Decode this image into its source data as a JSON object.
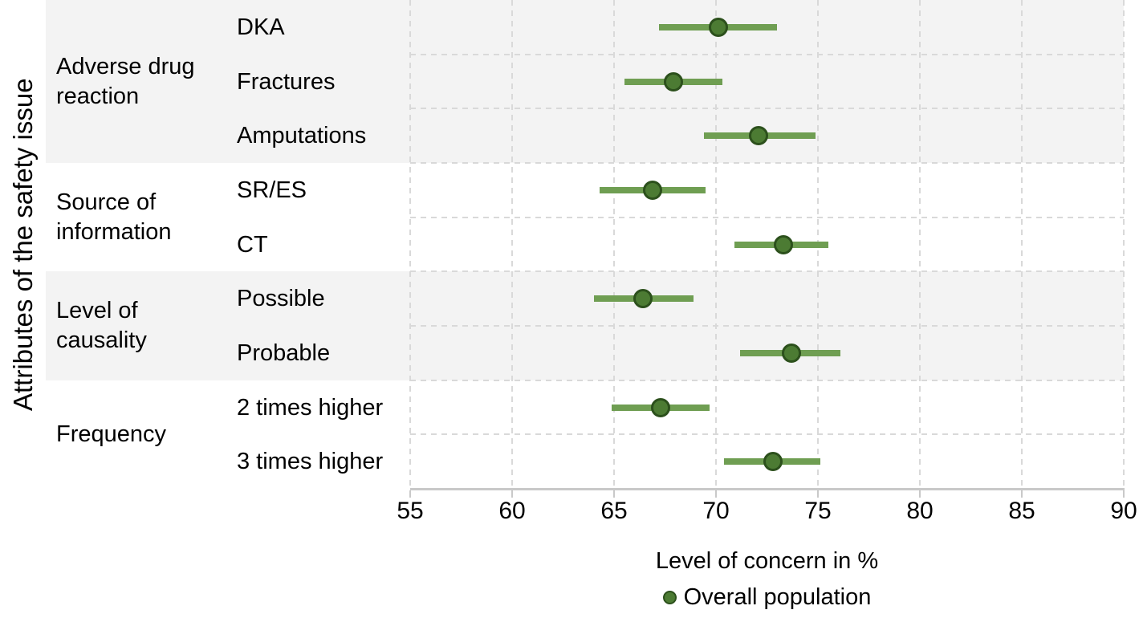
{
  "chart_data": {
    "type": "scatter",
    "subtype": "horizontal-dot-plot-with-ci",
    "title": "",
    "xlabel": "Level of concern in %",
    "ylabel": "Attributes of the safety issue",
    "legend_label": "Overall population",
    "legend_position": "bottom",
    "xlim": [
      55,
      90
    ],
    "xticks": [
      55,
      60,
      65,
      70,
      75,
      80,
      85,
      90
    ],
    "grid": "dashed vertical lines at each xtick; dashed horizontal lines between rows; alternating light-gray group bands",
    "groups": [
      {
        "label": "Adverse drug reaction",
        "shaded": true,
        "items": [
          {
            "label": "DKA",
            "estimate": 70.1,
            "ci_low": 67.2,
            "ci_high": 73.0
          },
          {
            "label": "Fractures",
            "estimate": 67.9,
            "ci_low": 65.5,
            "ci_high": 70.3
          },
          {
            "label": "Amputations",
            "estimate": 72.1,
            "ci_low": 69.4,
            "ci_high": 74.9
          }
        ]
      },
      {
        "label": "Source of information",
        "shaded": false,
        "items": [
          {
            "label": "SR/ES",
            "estimate": 66.9,
            "ci_low": 64.3,
            "ci_high": 69.5
          },
          {
            "label": "CT",
            "estimate": 73.3,
            "ci_low": 70.9,
            "ci_high": 75.5
          }
        ]
      },
      {
        "label": "Level of causality",
        "shaded": true,
        "items": [
          {
            "label": "Possible",
            "estimate": 66.4,
            "ci_low": 64.0,
            "ci_high": 68.9
          },
          {
            "label": "Probable",
            "estimate": 73.7,
            "ci_low": 71.2,
            "ci_high": 76.1
          }
        ]
      },
      {
        "label": "Frequency",
        "shaded": false,
        "items": [
          {
            "label": "2 times higher",
            "estimate": 67.3,
            "ci_low": 64.9,
            "ci_high": 69.7
          },
          {
            "label": "3 times higher",
            "estimate": 72.8,
            "ci_low": 70.4,
            "ci_high": 75.1
          }
        ]
      }
    ],
    "colors": {
      "point_fill": "#4c7b33",
      "point_stroke": "#2c501c",
      "ci_line": "#6f9e52",
      "band": "#f3f3f3",
      "gridline": "#d9d9d9",
      "axis_line": "#c9c9c9",
      "text": "#000000"
    }
  }
}
